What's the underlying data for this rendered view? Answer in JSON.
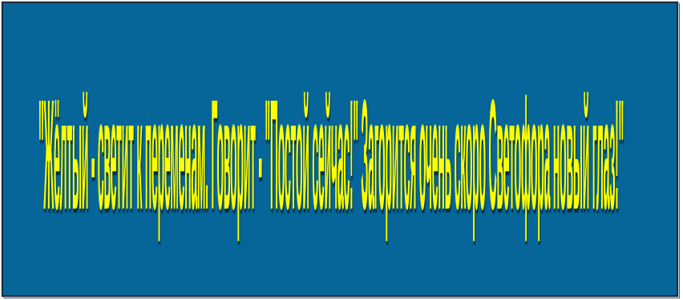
{
  "slide": {
    "text": "\"Жёлтый - светит к переменам. Говорит - \"Постой сейчас!\" Загорится очень скоро Светофора новый глаз!\"",
    "background_color": "#066699",
    "text_color": "#ffff00"
  }
}
